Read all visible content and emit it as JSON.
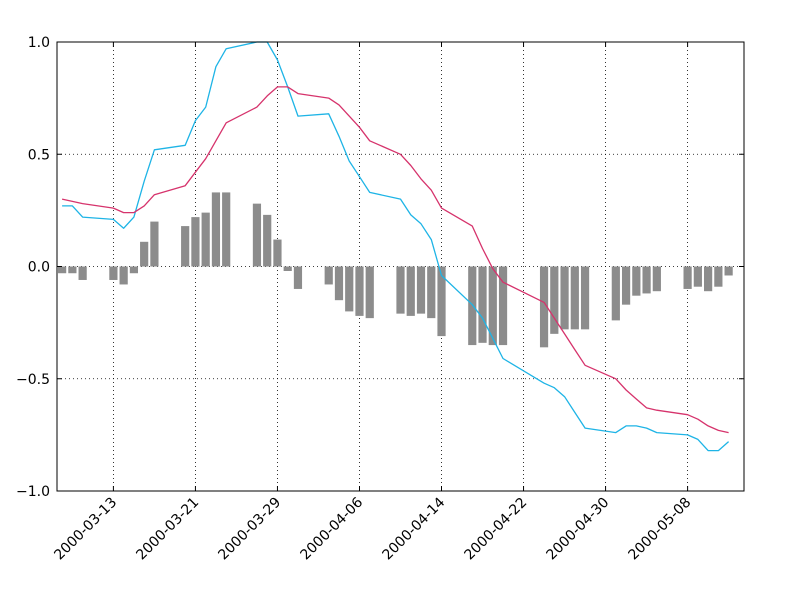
{
  "chart_data": {
    "type": "bar",
    "title": "",
    "xlabel": "",
    "ylabel": "",
    "ylim": [
      -1.0,
      1.0
    ],
    "xlim": [
      "2000-03-08",
      "2000-05-13"
    ],
    "grid": true,
    "y_ticks": [
      {
        "value": 1.0,
        "label": "1.0"
      },
      {
        "value": 0.5,
        "label": "0.5"
      },
      {
        "value": 0.0,
        "label": "0.0"
      },
      {
        "value": -0.5,
        "label": "−0.5"
      },
      {
        "value": -1.0,
        "label": "−1.0"
      }
    ],
    "x_ticks": [
      "2000-03-13",
      "2000-03-21",
      "2000-03-29",
      "2000-04-06",
      "2000-04-14",
      "2000-04-22",
      "2000-04-30",
      "2000-05-08"
    ],
    "bar_color": "#8c8c8c",
    "bars": [
      {
        "x": "2000-03-08",
        "y": -0.03
      },
      {
        "x": "2000-03-09",
        "y": -0.03
      },
      {
        "x": "2000-03-10",
        "y": -0.06
      },
      {
        "x": "2000-03-13",
        "y": -0.06
      },
      {
        "x": "2000-03-14",
        "y": -0.08
      },
      {
        "x": "2000-03-15",
        "y": -0.03
      },
      {
        "x": "2000-03-16",
        "y": 0.11
      },
      {
        "x": "2000-03-17",
        "y": 0.2
      },
      {
        "x": "2000-03-20",
        "y": 0.18
      },
      {
        "x": "2000-03-21",
        "y": 0.22
      },
      {
        "x": "2000-03-22",
        "y": 0.24
      },
      {
        "x": "2000-03-23",
        "y": 0.33
      },
      {
        "x": "2000-03-24",
        "y": 0.33
      },
      {
        "x": "2000-03-27",
        "y": 0.28
      },
      {
        "x": "2000-03-28",
        "y": 0.23
      },
      {
        "x": "2000-03-29",
        "y": 0.12
      },
      {
        "x": "2000-03-30",
        "y": -0.02
      },
      {
        "x": "2000-03-31",
        "y": -0.1
      },
      {
        "x": "2000-04-03",
        "y": -0.08
      },
      {
        "x": "2000-04-04",
        "y": -0.15
      },
      {
        "x": "2000-04-05",
        "y": -0.2
      },
      {
        "x": "2000-04-06",
        "y": -0.22
      },
      {
        "x": "2000-04-07",
        "y": -0.23
      },
      {
        "x": "2000-04-10",
        "y": -0.21
      },
      {
        "x": "2000-04-11",
        "y": -0.22
      },
      {
        "x": "2000-04-12",
        "y": -0.21
      },
      {
        "x": "2000-04-13",
        "y": -0.23
      },
      {
        "x": "2000-04-14",
        "y": -0.31
      },
      {
        "x": "2000-04-17",
        "y": -0.35
      },
      {
        "x": "2000-04-18",
        "y": -0.34
      },
      {
        "x": "2000-04-19",
        "y": -0.35
      },
      {
        "x": "2000-04-20",
        "y": -0.35
      },
      {
        "x": "2000-04-24",
        "y": -0.36
      },
      {
        "x": "2000-04-25",
        "y": -0.3
      },
      {
        "x": "2000-04-26",
        "y": -0.28
      },
      {
        "x": "2000-04-27",
        "y": -0.28
      },
      {
        "x": "2000-04-28",
        "y": -0.28
      },
      {
        "x": "2000-05-01",
        "y": -0.24
      },
      {
        "x": "2000-05-02",
        "y": -0.17
      },
      {
        "x": "2000-05-03",
        "y": -0.13
      },
      {
        "x": "2000-05-04",
        "y": -0.12
      },
      {
        "x": "2000-05-05",
        "y": -0.11
      },
      {
        "x": "2000-05-08",
        "y": -0.1
      },
      {
        "x": "2000-05-09",
        "y": -0.09
      },
      {
        "x": "2000-05-10",
        "y": -0.11
      },
      {
        "x": "2000-05-11",
        "y": -0.09
      },
      {
        "x": "2000-05-12",
        "y": -0.04
      }
    ],
    "series": [
      {
        "color": "#1eb4e6",
        "points": [
          {
            "x": "2000-03-08",
            "y": 0.27
          },
          {
            "x": "2000-03-09",
            "y": 0.27
          },
          {
            "x": "2000-03-10",
            "y": 0.22
          },
          {
            "x": "2000-03-13",
            "y": 0.21
          },
          {
            "x": "2000-03-14",
            "y": 0.17
          },
          {
            "x": "2000-03-15",
            "y": 0.22
          },
          {
            "x": "2000-03-16",
            "y": 0.38
          },
          {
            "x": "2000-03-17",
            "y": 0.52
          },
          {
            "x": "2000-03-20",
            "y": 0.54
          },
          {
            "x": "2000-03-21",
            "y": 0.65
          },
          {
            "x": "2000-03-22",
            "y": 0.71
          },
          {
            "x": "2000-03-23",
            "y": 0.89
          },
          {
            "x": "2000-03-24",
            "y": 0.97
          },
          {
            "x": "2000-03-27",
            "y": 1.0
          },
          {
            "x": "2000-03-28",
            "y": 1.0
          },
          {
            "x": "2000-03-29",
            "y": 0.92
          },
          {
            "x": "2000-03-30",
            "y": 0.8
          },
          {
            "x": "2000-03-31",
            "y": 0.67
          },
          {
            "x": "2000-04-03",
            "y": 0.68
          },
          {
            "x": "2000-04-04",
            "y": 0.58
          },
          {
            "x": "2000-04-05",
            "y": 0.47
          },
          {
            "x": "2000-04-06",
            "y": 0.4
          },
          {
            "x": "2000-04-07",
            "y": 0.33
          },
          {
            "x": "2000-04-10",
            "y": 0.3
          },
          {
            "x": "2000-04-11",
            "y": 0.23
          },
          {
            "x": "2000-04-12",
            "y": 0.19
          },
          {
            "x": "2000-04-13",
            "y": 0.12
          },
          {
            "x": "2000-04-14",
            "y": -0.04
          },
          {
            "x": "2000-04-17",
            "y": -0.17
          },
          {
            "x": "2000-04-18",
            "y": -0.23
          },
          {
            "x": "2000-04-19",
            "y": -0.32
          },
          {
            "x": "2000-04-20",
            "y": -0.41
          },
          {
            "x": "2000-04-24",
            "y": -0.52
          },
          {
            "x": "2000-04-25",
            "y": -0.54
          },
          {
            "x": "2000-04-26",
            "y": -0.58
          },
          {
            "x": "2000-04-27",
            "y": -0.65
          },
          {
            "x": "2000-04-28",
            "y": -0.72
          },
          {
            "x": "2000-05-01",
            "y": -0.74
          },
          {
            "x": "2000-05-02",
            "y": -0.71
          },
          {
            "x": "2000-05-03",
            "y": -0.71
          },
          {
            "x": "2000-05-04",
            "y": -0.72
          },
          {
            "x": "2000-05-05",
            "y": -0.74
          },
          {
            "x": "2000-05-08",
            "y": -0.75
          },
          {
            "x": "2000-05-09",
            "y": -0.77
          },
          {
            "x": "2000-05-10",
            "y": -0.82
          },
          {
            "x": "2000-05-11",
            "y": -0.82
          },
          {
            "x": "2000-05-12",
            "y": -0.78
          }
        ]
      },
      {
        "color": "#d6336c",
        "points": [
          {
            "x": "2000-03-08",
            "y": 0.3
          },
          {
            "x": "2000-03-09",
            "y": 0.29
          },
          {
            "x": "2000-03-10",
            "y": 0.28
          },
          {
            "x": "2000-03-13",
            "y": 0.26
          },
          {
            "x": "2000-03-14",
            "y": 0.24
          },
          {
            "x": "2000-03-15",
            "y": 0.24
          },
          {
            "x": "2000-03-16",
            "y": 0.27
          },
          {
            "x": "2000-03-17",
            "y": 0.32
          },
          {
            "x": "2000-03-20",
            "y": 0.36
          },
          {
            "x": "2000-03-21",
            "y": 0.42
          },
          {
            "x": "2000-03-22",
            "y": 0.48
          },
          {
            "x": "2000-03-23",
            "y": 0.56
          },
          {
            "x": "2000-03-24",
            "y": 0.64
          },
          {
            "x": "2000-03-27",
            "y": 0.71
          },
          {
            "x": "2000-03-28",
            "y": 0.76
          },
          {
            "x": "2000-03-29",
            "y": 0.8
          },
          {
            "x": "2000-03-30",
            "y": 0.8
          },
          {
            "x": "2000-03-31",
            "y": 0.77
          },
          {
            "x": "2000-04-03",
            "y": 0.75
          },
          {
            "x": "2000-04-04",
            "y": 0.72
          },
          {
            "x": "2000-04-05",
            "y": 0.67
          },
          {
            "x": "2000-04-06",
            "y": 0.62
          },
          {
            "x": "2000-04-07",
            "y": 0.56
          },
          {
            "x": "2000-04-10",
            "y": 0.5
          },
          {
            "x": "2000-04-11",
            "y": 0.45
          },
          {
            "x": "2000-04-12",
            "y": 0.39
          },
          {
            "x": "2000-04-13",
            "y": 0.34
          },
          {
            "x": "2000-04-14",
            "y": 0.26
          },
          {
            "x": "2000-04-17",
            "y": 0.18
          },
          {
            "x": "2000-04-18",
            "y": 0.08
          },
          {
            "x": "2000-04-19",
            "y": -0.01
          },
          {
            "x": "2000-04-20",
            "y": -0.07
          },
          {
            "x": "2000-04-24",
            "y": -0.16
          },
          {
            "x": "2000-04-25",
            "y": -0.23
          },
          {
            "x": "2000-04-26",
            "y": -0.3
          },
          {
            "x": "2000-04-27",
            "y": -0.37
          },
          {
            "x": "2000-04-28",
            "y": -0.44
          },
          {
            "x": "2000-05-01",
            "y": -0.5
          },
          {
            "x": "2000-05-02",
            "y": -0.55
          },
          {
            "x": "2000-05-03",
            "y": -0.59
          },
          {
            "x": "2000-05-04",
            "y": -0.63
          },
          {
            "x": "2000-05-05",
            "y": -0.64
          },
          {
            "x": "2000-05-08",
            "y": -0.66
          },
          {
            "x": "2000-05-09",
            "y": -0.68
          },
          {
            "x": "2000-05-10",
            "y": -0.71
          },
          {
            "x": "2000-05-11",
            "y": -0.73
          },
          {
            "x": "2000-05-12",
            "y": -0.74
          }
        ]
      }
    ]
  }
}
